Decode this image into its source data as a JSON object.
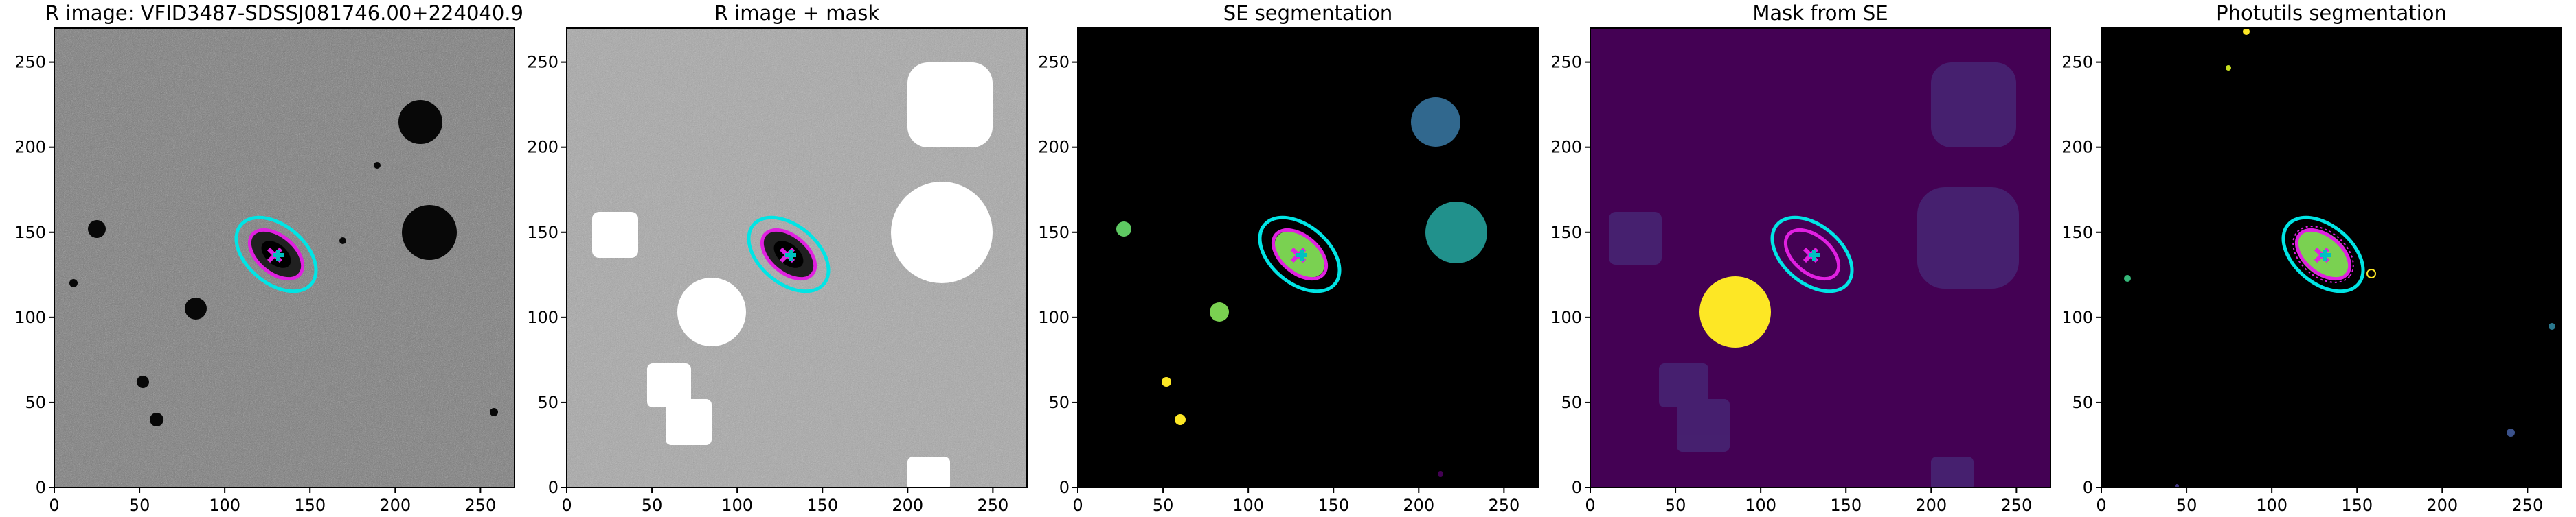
{
  "chart_data": [
    {
      "type": "image",
      "title": "R image: VFID3487-SDSSJ081746.00+224040.9",
      "xlim": [
        0,
        270
      ],
      "ylim": [
        0,
        270
      ],
      "xticks": [
        0,
        50,
        100,
        150,
        200,
        250
      ],
      "yticks": [
        0,
        50,
        100,
        150,
        200,
        250
      ]
    },
    {
      "type": "image",
      "title": "R image + mask",
      "xlim": [
        0,
        270
      ],
      "ylim": [
        0,
        270
      ],
      "xticks": [
        0,
        50,
        100,
        150,
        200,
        250
      ],
      "yticks": [
        0,
        50,
        100,
        150,
        200,
        250
      ]
    },
    {
      "type": "image",
      "title": "SE segmentation",
      "xlim": [
        0,
        270
      ],
      "ylim": [
        0,
        270
      ],
      "xticks": [
        0,
        50,
        100,
        150,
        200,
        250
      ],
      "yticks": [
        0,
        50,
        100,
        150,
        200,
        250
      ]
    },
    {
      "type": "image",
      "title": "Mask from SE",
      "xlim": [
        0,
        270
      ],
      "ylim": [
        0,
        270
      ],
      "xticks": [
        0,
        50,
        100,
        150,
        200,
        250
      ],
      "yticks": [
        0,
        50,
        100,
        150,
        200,
        250
      ]
    },
    {
      "type": "image",
      "title": "Photutils segmentation",
      "xlim": [
        0,
        270
      ],
      "ylim": [
        0,
        270
      ],
      "xticks": [
        0,
        50,
        100,
        150,
        200,
        250
      ],
      "yticks": [
        0,
        50,
        100,
        150,
        200,
        250
      ]
    }
  ]
}
